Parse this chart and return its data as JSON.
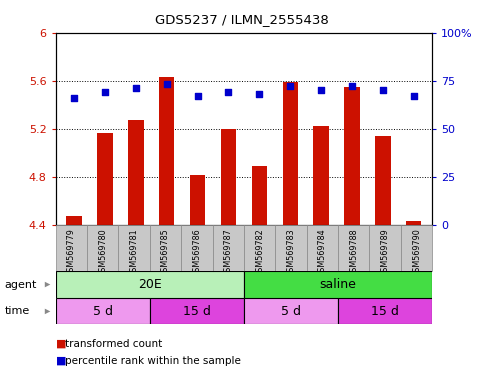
{
  "title": "GDS5237 / ILMN_2555438",
  "samples": [
    "GSM569779",
    "GSM569780",
    "GSM569781",
    "GSM569785",
    "GSM569786",
    "GSM569787",
    "GSM569782",
    "GSM569783",
    "GSM569784",
    "GSM569788",
    "GSM569789",
    "GSM569790"
  ],
  "bar_values": [
    4.47,
    5.16,
    5.27,
    5.63,
    4.81,
    5.2,
    4.89,
    5.59,
    5.22,
    5.55,
    5.14,
    4.43
  ],
  "percentile_values": [
    66,
    69,
    71,
    73,
    67,
    69,
    68,
    72,
    70,
    72,
    70,
    67
  ],
  "ylim_left": [
    4.4,
    6.0
  ],
  "ylim_right": [
    0,
    100
  ],
  "yticks_left": [
    4.4,
    4.8,
    5.2,
    5.6,
    6.0
  ],
  "ytick_labels_left": [
    "4.4",
    "4.8",
    "5.2",
    "5.6",
    "6"
  ],
  "yticks_right": [
    0,
    25,
    50,
    75,
    100
  ],
  "ytick_labels_right": [
    "0",
    "25",
    "50",
    "75",
    "100%"
  ],
  "bar_color": "#cc1100",
  "dot_color": "#0000cc",
  "agent_groups": [
    {
      "label": "20E",
      "start": 0,
      "end": 6,
      "color": "#b8f0b8"
    },
    {
      "label": "saline",
      "start": 6,
      "end": 12,
      "color": "#44dd44"
    }
  ],
  "time_groups": [
    {
      "label": "5 d",
      "start": 0,
      "end": 3,
      "color": "#ee99ee"
    },
    {
      "label": "15 d",
      "start": 3,
      "end": 6,
      "color": "#dd44dd"
    },
    {
      "label": "5 d",
      "start": 6,
      "end": 9,
      "color": "#ee99ee"
    },
    {
      "label": "15 d",
      "start": 9,
      "end": 12,
      "color": "#dd44dd"
    }
  ],
  "legend_items": [
    {
      "label": "transformed count",
      "color": "#cc1100"
    },
    {
      "label": "percentile rank within the sample",
      "color": "#0000cc"
    }
  ],
  "bg_color": "#ffffff",
  "tick_bg_color": "#c8c8c8",
  "tick_edge_color": "#888888",
  "left_axis_color": "#cc1100",
  "right_axis_color": "#0000cc",
  "grid_ticks": [
    4.8,
    5.2,
    5.6
  ]
}
